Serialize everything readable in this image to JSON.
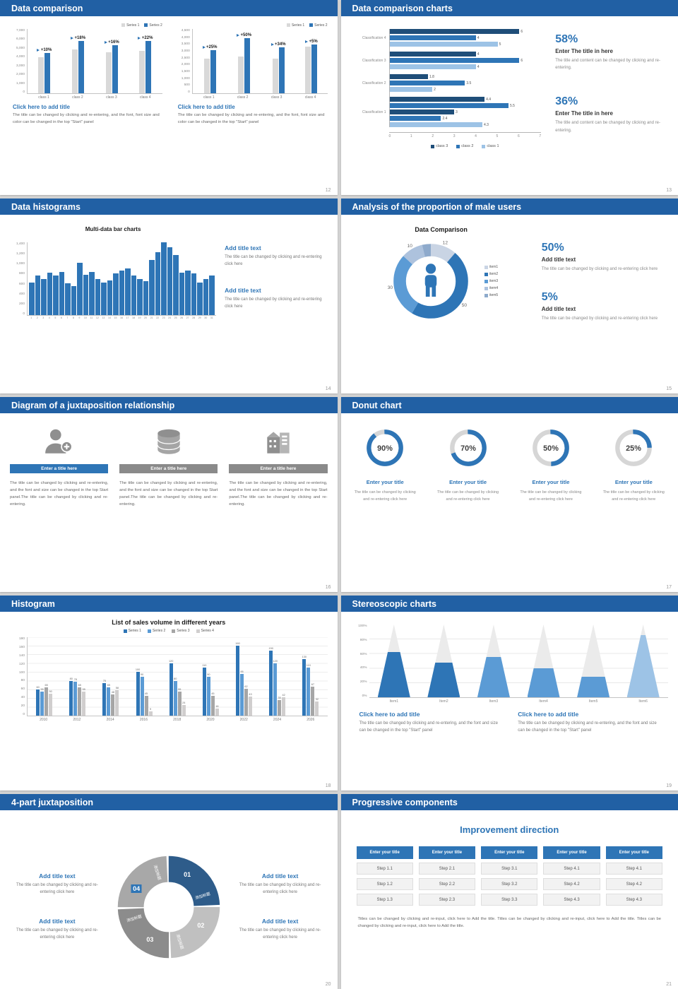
{
  "palette": {
    "header": "#2160a4",
    "blue": "#2e75b6",
    "mid_blue": "#5b9bd5",
    "light_blue": "#9dc3e6",
    "navy": "#1f4e79",
    "gray_bar": "#d9d9d9"
  },
  "slides": [
    {
      "title": "Data comparison",
      "page_num": "12",
      "charts": [
        {
          "legend": [
            "Series 1",
            "Series 2"
          ],
          "y_labels": [
            "7,000",
            "6,000",
            "5,000",
            "4,000",
            "3,000",
            "2,000",
            "1,000",
            "0"
          ],
          "y_max": 7000,
          "categories": [
            "class 1",
            "class 2",
            "class 3",
            "class 4"
          ],
          "growth_labels": [
            "+10%",
            "+18%",
            "+16%",
            "+22%"
          ],
          "series": [
            {
              "name": "Series 1",
              "values": [
                4600,
                5600,
                5200,
                5400
              ]
            },
            {
              "name": "Series 2",
              "values": [
                5100,
                6600,
                6100,
                6600
              ]
            }
          ],
          "caption_title": "Click here to add title",
          "caption_body": "The title can be changed by clicking and re-entering, and the font, font size and color can be changed in the top \"Start\" panel"
        },
        {
          "legend": [
            "Series 1",
            "Series 2"
          ],
          "y_labels": [
            "4,500",
            "4,000",
            "3,500",
            "3,000",
            "2,500",
            "2,000",
            "1,500",
            "1,000",
            "500",
            "0"
          ],
          "y_max": 4500,
          "categories": [
            "class 1",
            "class 2",
            "class 3",
            "class 4"
          ],
          "growth_labels": [
            "+25%",
            "+50%",
            "+34%",
            "+5%"
          ],
          "series": [
            {
              "name": "Series 1",
              "values": [
                2800,
                3000,
                2800,
                3800
              ]
            },
            {
              "name": "Series 2",
              "values": [
                3500,
                4500,
                3750,
                4000
              ]
            }
          ],
          "caption_title": "Click here to add title",
          "caption_body": "The title can be changed by clicking and re-entering, and the font, font size and color can be changed in the top \"Start\" panel"
        }
      ]
    },
    {
      "title": "Data comparison charts",
      "page_num": "13",
      "chart": {
        "type": "bar",
        "x_max": 7,
        "x_ticks": [
          "0",
          "1",
          "2",
          "3",
          "4",
          "5",
          "6",
          "7"
        ],
        "legend": [
          "class 3",
          "class 2",
          "class 1"
        ],
        "rows": [
          {
            "label": "Classification 4",
            "bars": [
              {
                "value": 6,
                "series": 0
              },
              {
                "value": 4,
                "series": 1
              },
              {
                "value": 5,
                "series": 2
              }
            ]
          },
          {
            "label": "Classification 3",
            "bars": [
              {
                "value": 4,
                "series": 0
              },
              {
                "value": 6,
                "series": 1
              },
              {
                "value": 4,
                "series": 2
              }
            ]
          },
          {
            "label": "Classification 2",
            "bars": [
              {
                "value": 1.8,
                "series": 0
              },
              {
                "value": 3.5,
                "series": 1
              },
              {
                "value": 2,
                "series": 2
              }
            ]
          },
          {
            "label": "Classification 1",
            "bars": [
              {
                "value": 4.4,
                "series": 0
              },
              {
                "value": 5.5,
                "series": 1
              },
              {
                "value": 3,
                "series": 0
              },
              {
                "value": 2.4,
                "series": 1
              },
              {
                "value": 4.3,
                "series": 2
              }
            ]
          }
        ]
      },
      "stats": [
        {
          "pct": "58%",
          "title": "Enter The title in here",
          "body": "The title and content can be changed by clicking and re-entering."
        },
        {
          "pct": "36%",
          "title": "Enter The title in here",
          "body": "The title and content can be changed by clicking and re-entering."
        }
      ]
    },
    {
      "title": "Data histograms",
      "page_num": "14",
      "chart": {
        "type": "bar",
        "title": "Multi-data bar charts",
        "y_labels": [
          "1,400",
          "1,200",
          "1,000",
          "800",
          "600",
          "400",
          "200",
          "0"
        ],
        "y_max": 1400,
        "x_labels": [
          "1",
          "2",
          "3",
          "4",
          "5",
          "6",
          "7",
          "8",
          "9",
          "10",
          "11",
          "12",
          "13",
          "14",
          "15",
          "16",
          "17",
          "18",
          "19",
          "20",
          "21",
          "22",
          "23",
          "24",
          "25",
          "26",
          "27",
          "28",
          "29",
          "30",
          "31"
        ],
        "values": [
          620,
          760,
          700,
          820,
          760,
          830,
          610,
          560,
          1000,
          770,
          830,
          700,
          620,
          660,
          800,
          860,
          900,
          760,
          700,
          650,
          1060,
          1210,
          1400,
          1300,
          1150,
          820,
          860,
          800,
          620,
          700,
          760
        ]
      },
      "blocks": [
        {
          "title": "Add title text",
          "body": "The title can be changed by clicking and re-entering click here"
        },
        {
          "title": "Add title text",
          "body": "The title can be changed by clicking and re-entering click here"
        }
      ]
    },
    {
      "title": "Analysis of the proportion of male users",
      "page_num": "15",
      "chart": {
        "type": "pie",
        "title": "Data Comparison",
        "segments": [
          {
            "label": "item1",
            "value": 12,
            "color": "#c9d4e4",
            "show_value": true
          },
          {
            "label": "item2",
            "value": 50,
            "color": "#2e75b6",
            "show_value": true
          },
          {
            "label": "item3",
            "value": 30,
            "color": "#5b9bd5",
            "show_value": true
          },
          {
            "label": "item4",
            "value": 10,
            "color": "#adc2dd",
            "show_value": true
          },
          {
            "label": "item5",
            "value": 4,
            "color": "#8eaacc",
            "show_value": false
          }
        ]
      },
      "stats": [
        {
          "pct": "50%",
          "title": "Add title text",
          "body": "The title can be changed by clicking and re-entering click here"
        },
        {
          "pct": "5%",
          "title": "Add title text",
          "body": "The title can be changed by clicking and re-entering click here"
        }
      ]
    },
    {
      "title": "Diagram of a juxtaposition relationship",
      "page_num": "16",
      "items": [
        {
          "icon": "person-plus-icon",
          "title": "Enter a title here",
          "active": true,
          "body": "The title can be changed by clicking and re-entering, and the font and size can be changed in the top Start panel.The title can be changed by clicking and re-entering."
        },
        {
          "icon": "database-icon",
          "title": "Enter a title here",
          "active": false,
          "body": "The title can be changed by clicking and re-entering, and the font and size can be changed in the top Start panel.The title can be changed by clicking and re-entering."
        },
        {
          "icon": "building-icon",
          "title": "Enter a title here",
          "active": false,
          "body": "The title can be changed by clicking and re-entering, and the font and size can be changed in the top Start panel.The title can be changed by clicking and re-entering."
        }
      ]
    },
    {
      "title": "Donut chart",
      "page_num": "17",
      "donuts": [
        {
          "pct": 90,
          "label": "90%",
          "title": "Enter your title",
          "body": "The title can be changed by clicking and re-entering click here"
        },
        {
          "pct": 70,
          "label": "70%",
          "title": "Enter your title",
          "body": "The title can be changed by clicking and re-entering click here"
        },
        {
          "pct": 50,
          "label": "50%",
          "title": "Enter your title",
          "body": "The title can be changed by clicking and re-entering click here"
        },
        {
          "pct": 25,
          "label": "25%",
          "title": "Enter your title",
          "body": "The title can be changed by clicking and re-entering click here"
        }
      ]
    },
    {
      "title": "Histogram",
      "page_num": "18",
      "chart": {
        "type": "bar",
        "title": "List of sales volume in different years",
        "legend": [
          "Series 1",
          "Series 2",
          "Series 3",
          "Series 4"
        ],
        "series_colors": [
          "#2e75b6",
          "#5b9bd5",
          "#a6a6a6",
          "#d0cece"
        ],
        "y_labels": [
          "180",
          "160",
          "140",
          "120",
          "100",
          "80",
          "60",
          "40",
          "20",
          "0"
        ],
        "y_max": 180,
        "categories": [
          "2010",
          "2012",
          "2014",
          "2016",
          "2018",
          "2020",
          "2022",
          "2024",
          "2026"
        ],
        "series": [
          {
            "name": "Series 1",
            "values": [
              60,
              80,
              75,
              100,
              120,
              110,
              160,
              150,
              130
            ]
          },
          {
            "name": "Series 2",
            "values": [
              55,
              78,
              65,
              90,
              80,
              90,
              95,
              120,
              110
            ]
          },
          {
            "name": "Series 3",
            "values": [
              65,
              65,
              48,
              45,
              55,
              45,
              62,
              35,
              67
            ]
          },
          {
            "name": "Series 4",
            "values": [
              50,
              55,
              58,
              9,
              24,
              16,
              43,
              42,
              32
            ]
          }
        ]
      }
    },
    {
      "title": "Stereoscopic charts",
      "page_num": "19",
      "chart": {
        "type": "bar",
        "y_labels": [
          "100%",
          "80%",
          "60%",
          "40%",
          "20%",
          "0%"
        ],
        "items": [
          {
            "label": "Item1",
            "fill_pct": 62,
            "color": "#2e75b6"
          },
          {
            "label": "Item2",
            "fill_pct": 48,
            "color": "#2e75b6"
          },
          {
            "label": "Item3",
            "fill_pct": 55,
            "color": "#5b9bd5"
          },
          {
            "label": "Item4",
            "fill_pct": 40,
            "color": "#5b9bd5"
          },
          {
            "label": "Item5",
            "fill_pct": 28,
            "color": "#5b9bd5"
          },
          {
            "label": "Item6",
            "fill_pct": 85,
            "color": "#9dc3e6"
          }
        ]
      },
      "blocks": [
        {
          "title": "Click here to add title",
          "body": "The title can be changed by clicking and re-entering, and the font and size can be changed in the top \"Start\" panel"
        },
        {
          "title": "Click here to add title",
          "body": "The title can be changed by clicking and re-entering, and the font and size can be changed in the top \"Start\" panel"
        }
      ]
    },
    {
      "title": "4-part juxtaposition",
      "page_num": "20",
      "ring_segments": [
        {
          "num": "01",
          "text": "添加标题",
          "color": "#2e5c8a"
        },
        {
          "num": "02",
          "text": "添加标题",
          "color": "#c0c0c0"
        },
        {
          "num": "03",
          "text": "添加标题",
          "color": "#8c8c8c"
        },
        {
          "num": "04",
          "text": "添加标题",
          "color": "#a8a8a8"
        }
      ],
      "left_blocks": [
        {
          "title": "Add title text",
          "body": "The title can be changed by clicking and re-entering click here"
        },
        {
          "title": "Add title text",
          "body": "The title can be changed by clicking and re-entering click here"
        }
      ],
      "right_blocks": [
        {
          "title": "Add title text",
          "body": "The title can be changed by clicking and re-entering click here"
        },
        {
          "title": "Add title text",
          "body": "The title can be changed by clicking and re-entering click here"
        }
      ]
    },
    {
      "title": "Progressive components",
      "page_num": "21",
      "heading": "Improvement direction",
      "columns": [
        {
          "header": "Enter your title",
          "steps": [
            "Step 1.1",
            "Step 1.2",
            "Step 1.3"
          ]
        },
        {
          "header": "Enter your title",
          "steps": [
            "Step 2.1",
            "Step 2.2",
            "Step 2.3"
          ]
        },
        {
          "header": "Enter your title",
          "steps": [
            "Step 3.1",
            "Step 3.2",
            "Step 3.3"
          ]
        },
        {
          "header": "Enter your title",
          "steps": [
            "Step 4.1",
            "Step 4.2",
            "Step 4.3"
          ]
        },
        {
          "header": "Enter your title",
          "steps": [
            "Step 4.1",
            "Step 4.2",
            "Step 4.3"
          ]
        }
      ],
      "footer": "Titles can be changed by clicking and re-input, click here to Add the title. Titles can be changed by clicking and re-input, click here to Add the title. Titles can be changed by clicking and re-input, click here to Add the title."
    }
  ]
}
